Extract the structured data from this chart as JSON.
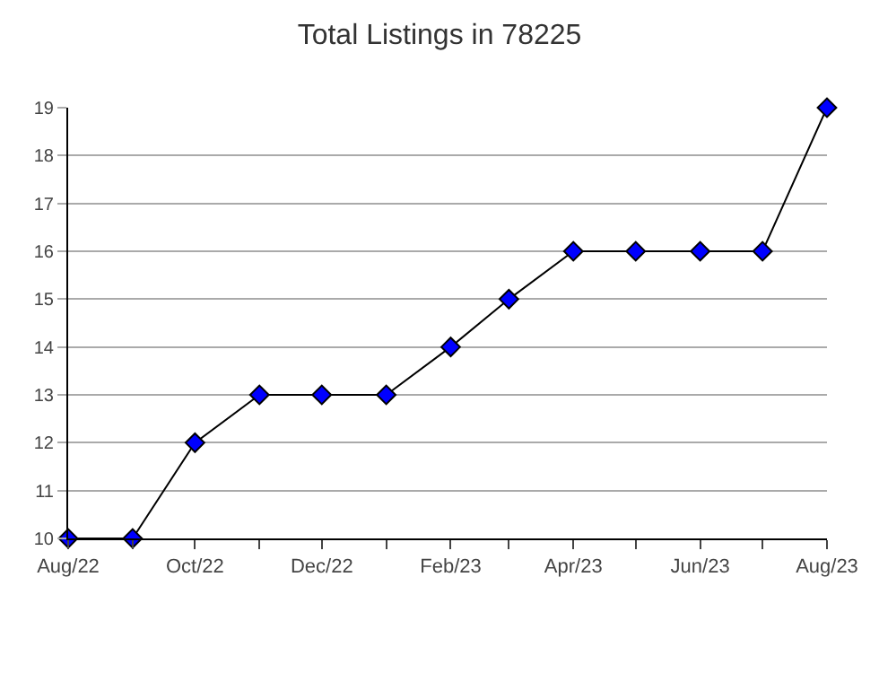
{
  "chart_data": {
    "type": "line",
    "title": "Total Listings in 78225",
    "x": [
      "2022-08",
      "2022-09",
      "2022-10",
      "2022-11",
      "2022-12",
      "2023-01",
      "2023-02",
      "2023-03",
      "2023-04",
      "2023-05",
      "2023-06",
      "2023-07",
      "2023-08"
    ],
    "series": [
      {
        "color": "#0000ff",
        "values": [
          10,
          10,
          12,
          13,
          13,
          13,
          14,
          15,
          16,
          16,
          16,
          16,
          19
        ]
      }
    ],
    "xlim": [
      "2022-08",
      "2023-08"
    ],
    "xticks": [
      {
        "value": "2022-08",
        "label": "Aug/22"
      },
      {
        "value": "2022-09",
        "label": null
      },
      {
        "value": "2022-10",
        "label": "Oct/22"
      },
      {
        "value": "2022-11",
        "label": null
      },
      {
        "value": "2022-12",
        "label": "Dec/22"
      },
      {
        "value": "2023-01",
        "label": null
      },
      {
        "value": "2023-02",
        "label": "Feb/23"
      },
      {
        "value": "2023-03",
        "label": null
      },
      {
        "value": "2023-04",
        "label": "Apr/23"
      },
      {
        "value": "2023-05",
        "label": null
      },
      {
        "value": "2023-06",
        "label": "Jun/23"
      },
      {
        "value": "2023-07",
        "label": null
      },
      {
        "value": "2023-08",
        "label": "Aug/23"
      }
    ],
    "ylim": [
      10,
      19
    ],
    "yticks": [
      10,
      11,
      12,
      13,
      14,
      15,
      16,
      17,
      18,
      19
    ],
    "grid": "y",
    "marker": "diamond",
    "line_style": "solid"
  }
}
